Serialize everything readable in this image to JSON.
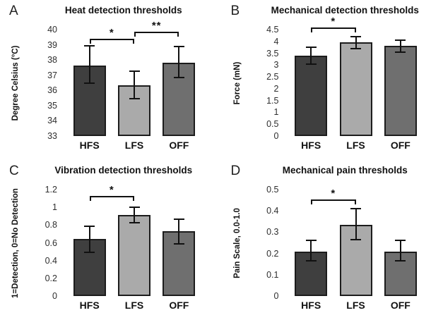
{
  "figure": {
    "background": "#ffffff",
    "text_color": "#111111",
    "tick_label_color": "#2e2e2e",
    "bar_border_color": "#1c1c1c",
    "bar_fill_colors": [
      "#3f3f3f",
      "#aaaaaa",
      "#6f6f6f"
    ],
    "error_bar_color": "#111111"
  },
  "chart_data": [
    {
      "type": "bar",
      "panel": "A",
      "title": "Heat detection thresholds",
      "ylabel": "Degree Celsius (°C)",
      "categories": [
        "HFS",
        "LFS",
        "OFF"
      ],
      "values": [
        37.65,
        36.35,
        37.8
      ],
      "error_low": [
        36.5,
        35.45,
        36.85
      ],
      "error_high": [
        38.95,
        37.25,
        38.9
      ],
      "ylim": [
        33,
        40
      ],
      "yticks": [
        "40",
        "39",
        "38",
        "37",
        "36",
        "35",
        "34",
        "33"
      ],
      "grid": "off",
      "significance": [
        {
          "from": 0,
          "to": 1,
          "label": "*",
          "level": 39.4
        },
        {
          "from": 1,
          "to": 2,
          "label": "**",
          "level": 39.85
        }
      ]
    },
    {
      "type": "bar",
      "panel": "B",
      "title": "Mechanical detection thresholds",
      "ylabel": "Force (mN)",
      "categories": [
        "HFS",
        "LFS",
        "OFF"
      ],
      "values": [
        3.4,
        3.95,
        3.8
      ],
      "error_low": [
        3.05,
        3.7,
        3.55
      ],
      "error_high": [
        3.75,
        4.2,
        4.05
      ],
      "ylim": [
        0,
        4.5
      ],
      "yticks": [
        "4.5",
        "4",
        "3.5",
        "3",
        "2.5",
        "2",
        "1.5",
        "1",
        "0.5",
        "0"
      ],
      "grid": "off",
      "significance": [
        {
          "from": 0,
          "to": 1,
          "label": "*",
          "level": 4.6
        }
      ]
    },
    {
      "type": "bar",
      "panel": "C",
      "title": "Vibration detection thresholds",
      "ylabel": "1=Detection, 0=No Detection",
      "categories": [
        "HFS",
        "LFS",
        "OFF"
      ],
      "values": [
        0.64,
        0.91,
        0.73
      ],
      "error_low": [
        0.49,
        0.83,
        0.59
      ],
      "error_high": [
        0.79,
        1.0,
        0.87
      ],
      "ylim": [
        0,
        1.2
      ],
      "yticks": [
        "1.2",
        "1",
        "0.8",
        "0.6",
        "0.4",
        "0.2",
        "0"
      ],
      "grid": "off",
      "significance": [
        {
          "from": 0,
          "to": 1,
          "label": "*",
          "level": 1.13
        }
      ]
    },
    {
      "type": "bar",
      "panel": "D",
      "title": "Mechanical pain thresholds",
      "ylabel": "Pain Scale, 0.0-1.0",
      "categories": [
        "HFS",
        "LFS",
        "OFF"
      ],
      "values": [
        0.21,
        0.335,
        0.21
      ],
      "error_low": [
        0.165,
        0.265,
        0.165
      ],
      "error_high": [
        0.26,
        0.41,
        0.26
      ],
      "ylim": [
        0,
        0.5
      ],
      "yticks": [
        "0.5",
        "0.4",
        "0.3",
        "0.2",
        "0.1",
        "0"
      ],
      "grid": "off",
      "significance": [
        {
          "from": 0,
          "to": 1,
          "label": "*",
          "level": 0.455
        }
      ]
    }
  ]
}
